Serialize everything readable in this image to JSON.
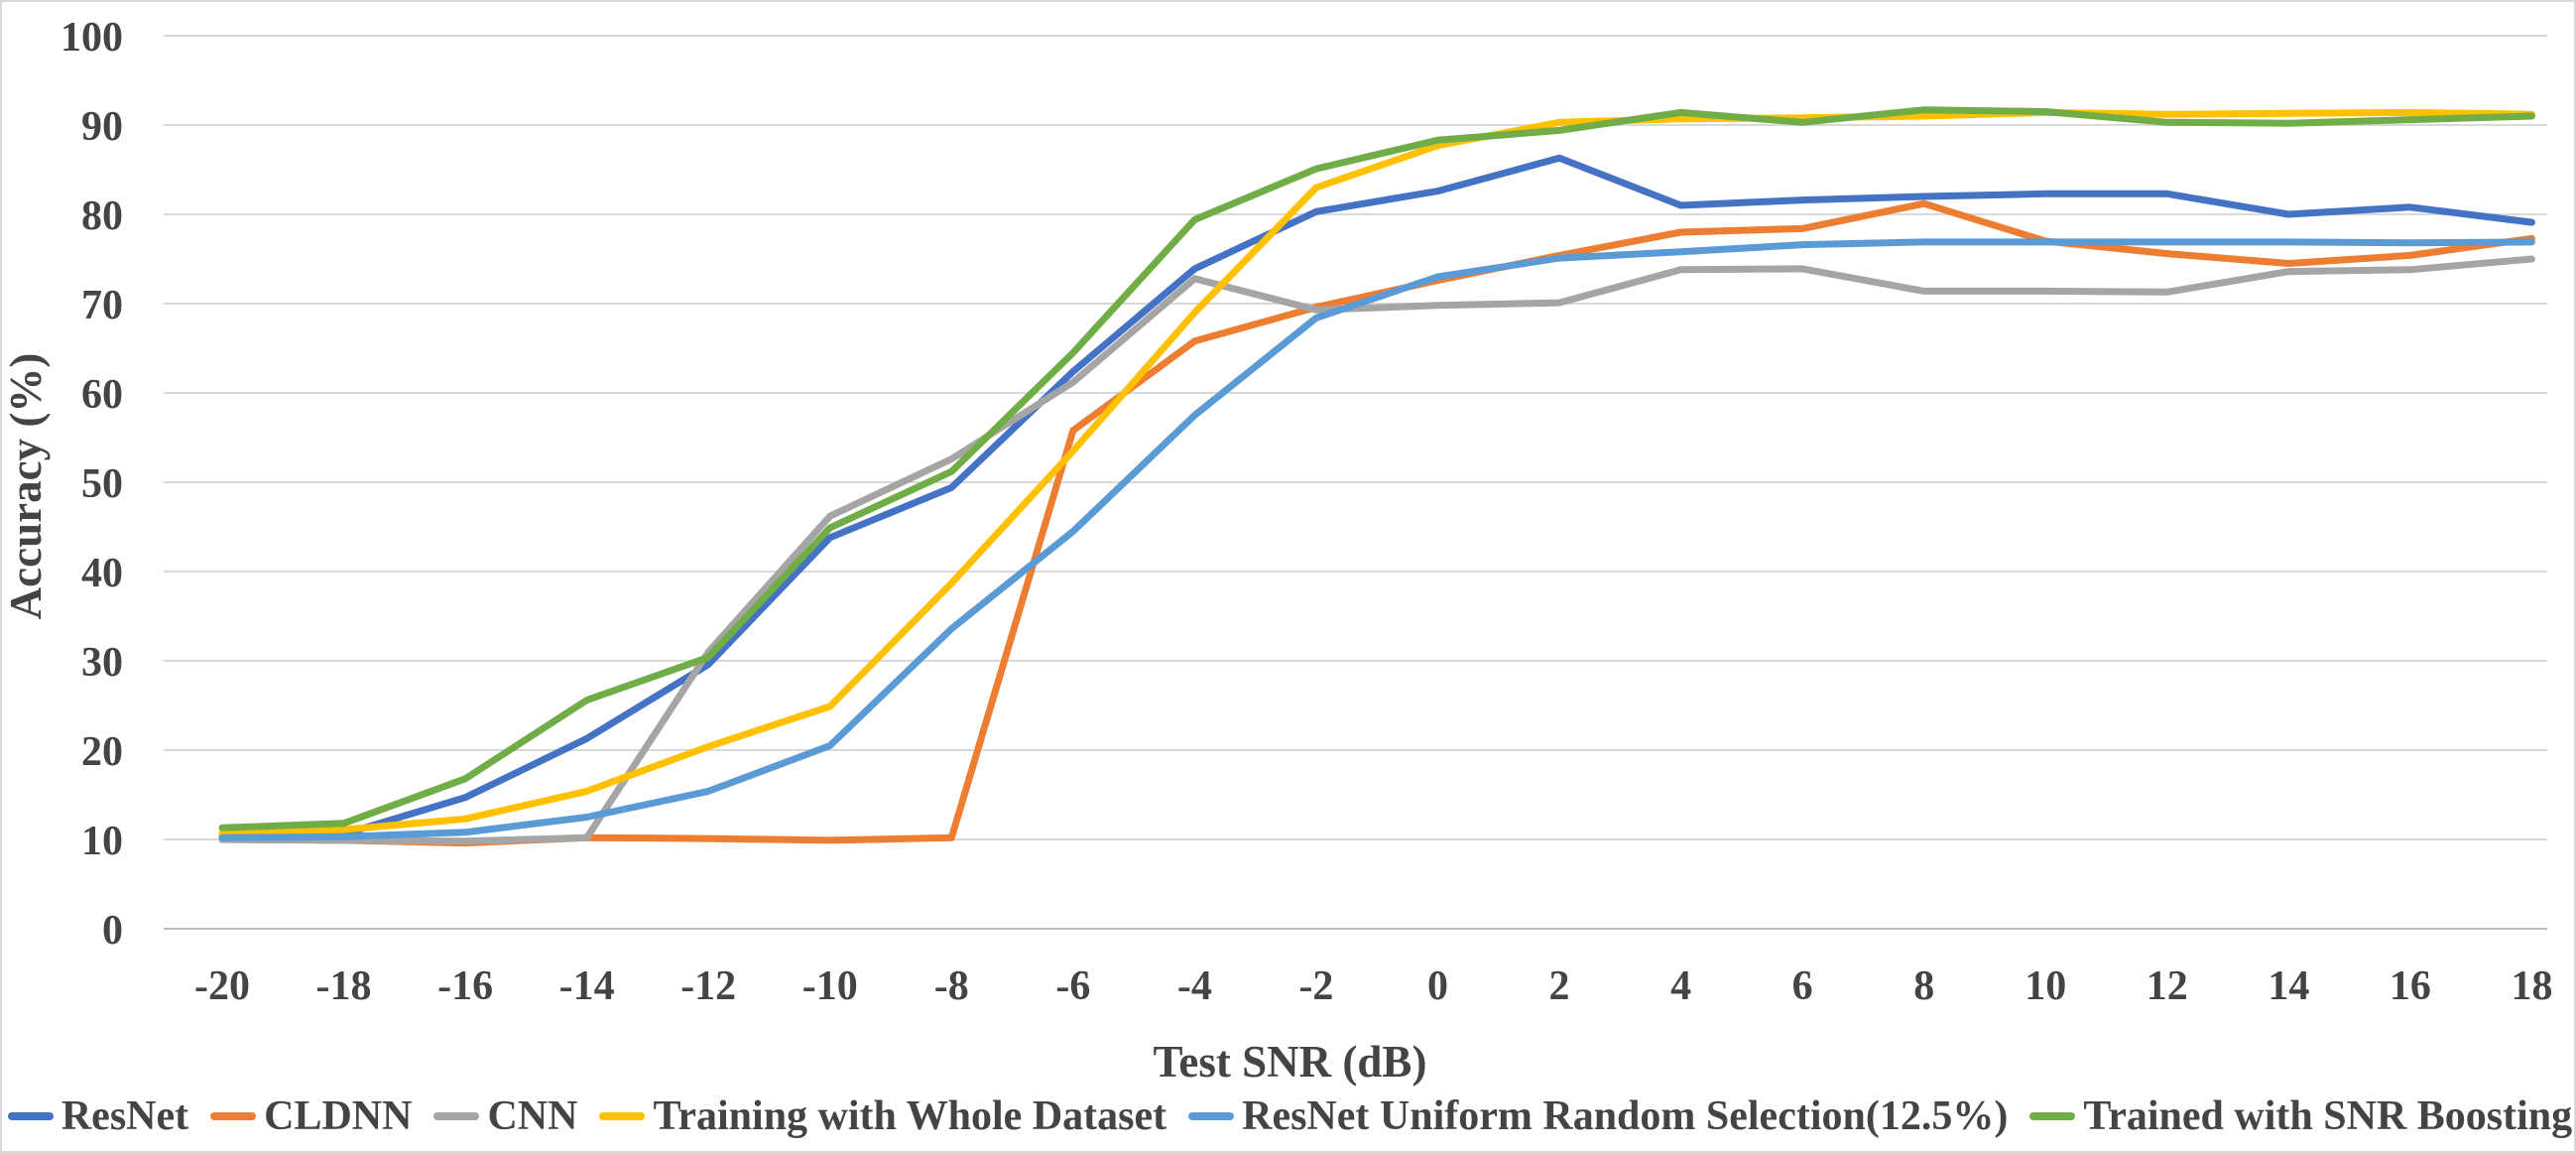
{
  "chart_data": {
    "type": "line",
    "title": "",
    "xlabel": "Test SNR (dB)",
    "ylabel": "Accuracy (%)",
    "x": [
      -20,
      -18,
      -16,
      -14,
      -12,
      -10,
      -8,
      -6,
      -4,
      -2,
      0,
      2,
      4,
      6,
      8,
      10,
      12,
      14,
      16,
      18
    ],
    "y_ticks": [
      0,
      10,
      20,
      30,
      40,
      50,
      60,
      70,
      80,
      90,
      100
    ],
    "ylim": [
      0,
      100
    ],
    "grid": true,
    "legend_position": "bottom",
    "series": [
      {
        "name": "ResNet",
        "color": "#4472C4",
        "values": [
          10.3,
          10.6,
          14.7,
          21.3,
          29.6,
          43.8,
          49.4,
          62.4,
          73.9,
          80.3,
          82.6,
          86.3,
          81.0,
          81.6,
          82.0,
          82.3,
          82.3,
          80.0,
          80.8,
          79.1
        ]
      },
      {
        "name": "CLDNN",
        "color": "#ED7D31",
        "values": [
          10.0,
          9.9,
          9.6,
          10.2,
          10.1,
          9.9,
          10.2,
          55.8,
          65.8,
          69.6,
          72.6,
          75.4,
          78.0,
          78.4,
          81.2,
          77.0,
          75.6,
          74.5,
          75.4,
          77.3
        ]
      },
      {
        "name": "CNN",
        "color": "#A5A5A5",
        "values": [
          10.0,
          9.9,
          9.8,
          10.2,
          31.0,
          46.2,
          52.6,
          61.2,
          72.8,
          69.3,
          69.8,
          70.1,
          73.8,
          73.9,
          71.4,
          71.4,
          71.3,
          73.6,
          73.8,
          75.0
        ]
      },
      {
        "name": "Training with Whole Dataset",
        "color": "#FFC000",
        "values": [
          10.7,
          11.1,
          12.3,
          15.4,
          20.4,
          24.9,
          38.7,
          53.5,
          69.0,
          83.0,
          87.7,
          90.3,
          90.7,
          90.8,
          91.0,
          91.4,
          91.2,
          91.3,
          91.4,
          91.2
        ]
      },
      {
        "name": "ResNet Uniform Random Selection(12.5%)",
        "color": "#5B9BD5",
        "values": [
          10.2,
          10.3,
          10.8,
          12.5,
          15.4,
          20.5,
          33.6,
          44.5,
          57.5,
          68.4,
          73.0,
          75.1,
          75.8,
          76.6,
          76.9,
          76.9,
          76.9,
          76.9,
          76.8,
          76.9
        ]
      },
      {
        "name": "Trained with SNR Boosting",
        "color": "#70AD47",
        "values": [
          11.3,
          11.8,
          16.8,
          25.6,
          30.4,
          44.9,
          51.2,
          64.5,
          79.4,
          85.1,
          88.3,
          89.4,
          91.4,
          90.3,
          91.7,
          91.5,
          90.3,
          90.2,
          90.6,
          91.0
        ]
      }
    ],
    "style": {
      "grid_color": "#D9D9D9",
      "zero_line_color": "#BFBFBF",
      "text_color": "#444444",
      "background": "#FFFFFF"
    }
  }
}
